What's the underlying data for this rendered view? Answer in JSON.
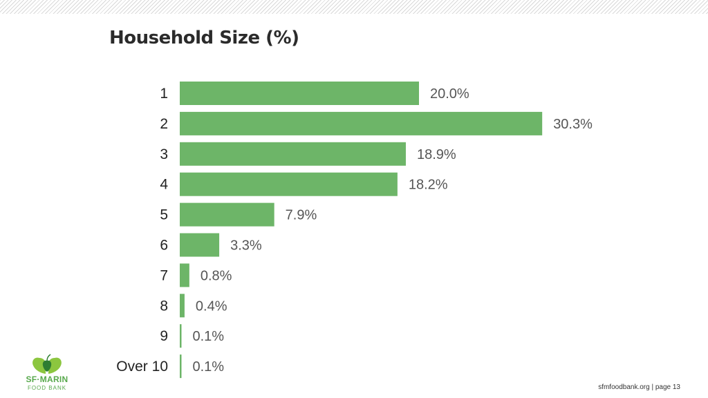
{
  "colors": {
    "bar": "#6db568",
    "logo_green": "#57a84b"
  },
  "logo": {
    "line1": "SF·MARIN",
    "line2": "FOOD BANK"
  },
  "footer": {
    "text": "sfmfoodbank.org | page 13"
  },
  "chart_data": {
    "type": "bar",
    "orientation": "horizontal",
    "title": "Household Size (%)",
    "categories": [
      "1",
      "2",
      "3",
      "4",
      "5",
      "6",
      "7",
      "8",
      "9",
      "Over 10"
    ],
    "values": [
      20.0,
      30.3,
      18.9,
      18.2,
      7.9,
      3.3,
      0.8,
      0.4,
      0.1,
      0.1
    ],
    "value_labels": [
      "20.0%",
      "30.3%",
      "18.9%",
      "18.2%",
      "7.9%",
      "3.3%",
      "0.8%",
      "0.4%",
      "0.1%",
      "0.1%"
    ],
    "xlabel": "",
    "ylabel": "",
    "grid": false
  }
}
